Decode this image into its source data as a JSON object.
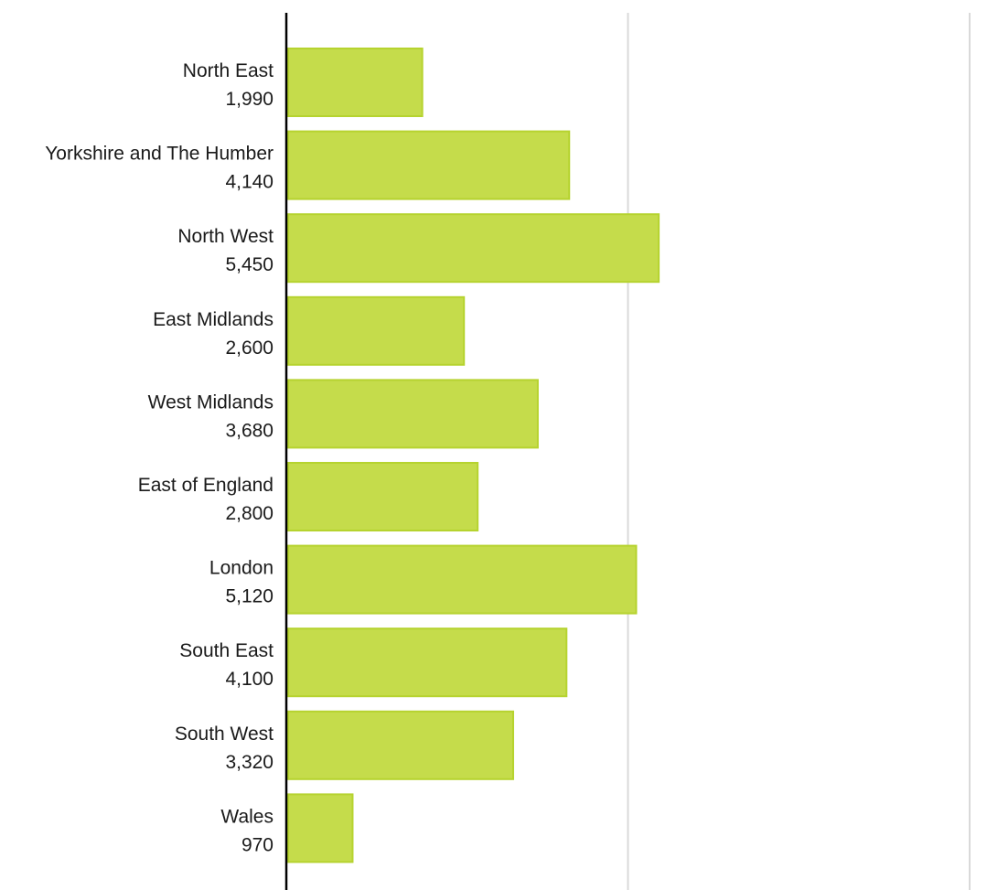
{
  "chart_data": {
    "type": "bar",
    "orientation": "horizontal",
    "categories": [
      "North East",
      "Yorkshire and The Humber",
      "North West",
      "East Midlands",
      "West Midlands",
      "East of England",
      "London",
      "South East",
      "South West",
      "Wales"
    ],
    "values": [
      1990,
      4140,
      5450,
      2600,
      3680,
      2800,
      5120,
      4100,
      3320,
      970
    ],
    "value_labels": [
      "1,990",
      "4,140",
      "5,450",
      "2,600",
      "3,680",
      "2,800",
      "5,120",
      "4,100",
      "3,320",
      "970"
    ],
    "title": "",
    "xlabel": "",
    "ylabel": "",
    "xlim": [
      0,
      10000
    ],
    "grid": true,
    "legend": "none",
    "colors": {
      "bar_fill": "#c5dc4b",
      "bar_stroke": "#b6d32f",
      "axis": "#000000",
      "grid": "#d9d9d9"
    }
  }
}
